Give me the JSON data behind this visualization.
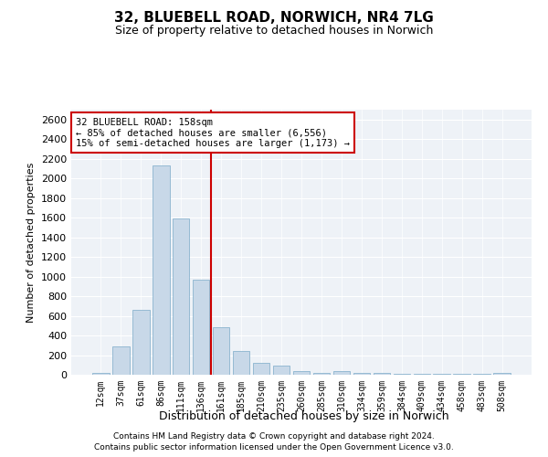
{
  "title1": "32, BLUEBELL ROAD, NORWICH, NR4 7LG",
  "title2": "Size of property relative to detached houses in Norwich",
  "xlabel": "Distribution of detached houses by size in Norwich",
  "ylabel": "Number of detached properties",
  "categories": [
    "12sqm",
    "37sqm",
    "61sqm",
    "86sqm",
    "111sqm",
    "136sqm",
    "161sqm",
    "185sqm",
    "210sqm",
    "235sqm",
    "260sqm",
    "285sqm",
    "310sqm",
    "334sqm",
    "359sqm",
    "384sqm",
    "409sqm",
    "434sqm",
    "458sqm",
    "483sqm",
    "508sqm"
  ],
  "values": [
    20,
    290,
    660,
    2130,
    1590,
    970,
    480,
    240,
    120,
    95,
    35,
    15,
    40,
    15,
    15,
    10,
    10,
    10,
    10,
    10,
    20
  ],
  "bar_color": "#c8d8e8",
  "bar_edge_color": "#7aaac8",
  "property_size_index": 6,
  "vline_color": "#cc0000",
  "annotation_line1": "32 BLUEBELL ROAD: 158sqm",
  "annotation_line2": "← 85% of detached houses are smaller (6,556)",
  "annotation_line3": "15% of semi-detached houses are larger (1,173) →",
  "annotation_box_color": "#cc0000",
  "ylim": [
    0,
    2700
  ],
  "yticks": [
    0,
    200,
    400,
    600,
    800,
    1000,
    1200,
    1400,
    1600,
    1800,
    2000,
    2200,
    2400,
    2600
  ],
  "bg_color": "#eef2f7",
  "footer1": "Contains HM Land Registry data © Crown copyright and database right 2024.",
  "footer2": "Contains public sector information licensed under the Open Government Licence v3.0."
}
